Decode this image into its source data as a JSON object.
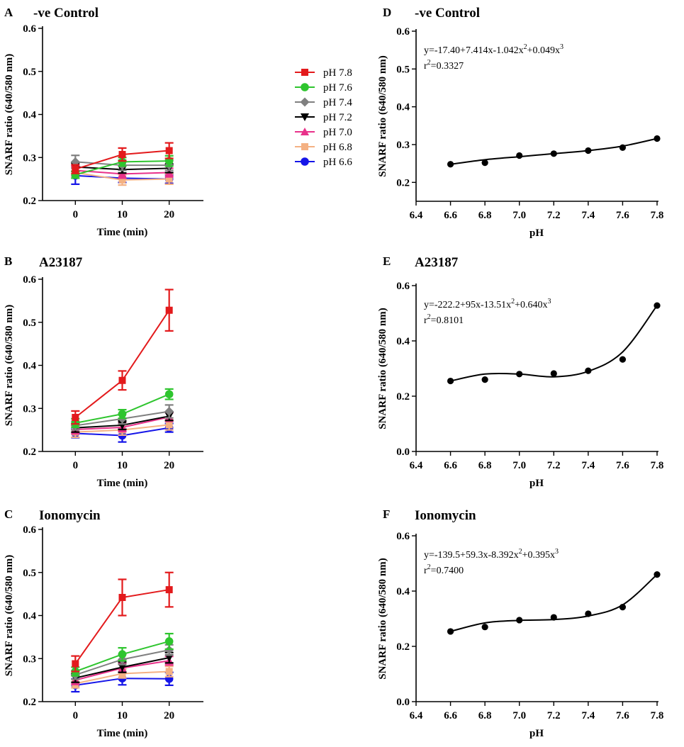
{
  "chart_data": [
    {
      "panel": "A",
      "type": "line",
      "title": "-ve Control",
      "xlabel": "Time (min)",
      "ylabel": "SNARF ratio (640/580 nm)",
      "x": [
        0,
        10,
        20
      ],
      "xticks": [
        "0",
        "10",
        "20"
      ],
      "xlim": [
        -7,
        27
      ],
      "ylim": [
        0.2,
        0.6
      ],
      "yticks": [
        "0.2",
        "0.3",
        "0.4",
        "0.5",
        "0.6"
      ],
      "yticks_show": [
        "0.2",
        "0.3",
        "0.4",
        "0.5",
        "0.6"
      ],
      "legend": "top-right",
      "series": [
        {
          "name": "pH 7.8",
          "color": "#e31a1c",
          "marker": "square",
          "values": [
            0.273,
            0.307,
            0.316
          ],
          "errors": [
            0.01,
            0.015,
            0.018
          ]
        },
        {
          "name": "pH 7.6",
          "color": "#2ec52e",
          "marker": "circle",
          "values": [
            0.26,
            0.29,
            0.292
          ],
          "errors": [
            0.008,
            0.01,
            0.012
          ]
        },
        {
          "name": "pH 7.4",
          "color": "#808080",
          "marker": "diamond",
          "values": [
            0.29,
            0.282,
            0.282
          ],
          "errors": [
            0.015,
            0.012,
            0.012
          ]
        },
        {
          "name": "pH 7.2",
          "color": "#000000",
          "marker": "triangle-down",
          "values": [
            0.278,
            0.272,
            0.275
          ],
          "errors": [
            0.01,
            0.008,
            0.01
          ]
        },
        {
          "name": "pH 7.0",
          "color": "#e8318a",
          "marker": "triangle-up",
          "values": [
            0.27,
            0.262,
            0.265
          ],
          "errors": [
            0.01,
            0.01,
            0.01
          ]
        },
        {
          "name": "pH 6.8",
          "color": "#f4b183",
          "marker": "square",
          "values": [
            0.265,
            0.248,
            0.25
          ],
          "errors": [
            0.012,
            0.012,
            0.012
          ]
        },
        {
          "name": "pH 6.6",
          "color": "#1515e8",
          "marker": "circle",
          "values": [
            0.258,
            0.252,
            0.25
          ],
          "errors": [
            0.02,
            0.01,
            0.01
          ]
        }
      ]
    },
    {
      "panel": "B",
      "type": "line",
      "title": "A23187",
      "xlabel": "Time (min)",
      "ylabel": "SNARF ratio (640/580 nm)",
      "x": [
        0,
        10,
        20
      ],
      "xticks": [
        "0",
        "10",
        "20"
      ],
      "xlim": [
        -7,
        27
      ],
      "ylim": [
        0.2,
        0.6
      ],
      "yticks": [
        "0.2",
        "0.3",
        "0.4",
        "0.5",
        "0.6"
      ],
      "yticks_show": [
        "0.2",
        "0.3",
        "0.4",
        "0.5",
        "0.6"
      ],
      "series": [
        {
          "name": "pH 7.8",
          "color": "#e31a1c",
          "marker": "square",
          "values": [
            0.279,
            0.365,
            0.528
          ],
          "errors": [
            0.015,
            0.022,
            0.048
          ]
        },
        {
          "name": "pH 7.6",
          "color": "#2ec52e",
          "marker": "circle",
          "values": [
            0.266,
            0.287,
            0.333
          ],
          "errors": [
            0.01,
            0.01,
            0.012
          ]
        },
        {
          "name": "pH 7.4",
          "color": "#808080",
          "marker": "diamond",
          "values": [
            0.26,
            0.276,
            0.293
          ],
          "errors": [
            0.01,
            0.012,
            0.015
          ]
        },
        {
          "name": "pH 7.2",
          "color": "#000000",
          "marker": "triangle-down",
          "values": [
            0.255,
            0.261,
            0.282
          ],
          "errors": [
            0.01,
            0.01,
            0.01
          ]
        },
        {
          "name": "pH 7.0",
          "color": "#e8318a",
          "marker": "triangle-up",
          "values": [
            0.251,
            0.256,
            0.28
          ],
          "errors": [
            0.01,
            0.01,
            0.01
          ]
        },
        {
          "name": "pH 6.8",
          "color": "#f4b183",
          "marker": "square",
          "values": [
            0.245,
            0.25,
            0.262
          ],
          "errors": [
            0.012,
            0.012,
            0.012
          ]
        },
        {
          "name": "pH 6.6",
          "color": "#1515e8",
          "marker": "circle",
          "values": [
            0.242,
            0.237,
            0.255
          ],
          "errors": [
            0.01,
            0.015,
            0.01
          ]
        }
      ]
    },
    {
      "panel": "C",
      "type": "line",
      "title": "Ionomycin",
      "xlabel": "Time (min)",
      "ylabel": "SNARF ratio (640/580 nm)",
      "x": [
        0,
        10,
        20
      ],
      "xticks": [
        "0",
        "10",
        "20"
      ],
      "xlim": [
        -7,
        27
      ],
      "ylim": [
        0.2,
        0.6
      ],
      "yticks": [
        "0.2",
        "0.3",
        "0.4",
        "0.5",
        "0.6"
      ],
      "yticks_show": [
        "0.2",
        "0.3",
        "0.4",
        "0.5",
        "0.6"
      ],
      "series": [
        {
          "name": "pH 7.8",
          "color": "#e31a1c",
          "marker": "square",
          "values": [
            0.288,
            0.442,
            0.46
          ],
          "errors": [
            0.018,
            0.042,
            0.04
          ]
        },
        {
          "name": "pH 7.6",
          "color": "#2ec52e",
          "marker": "circle",
          "values": [
            0.27,
            0.31,
            0.34
          ],
          "errors": [
            0.01,
            0.015,
            0.018
          ]
        },
        {
          "name": "pH 7.4",
          "color": "#808080",
          "marker": "diamond",
          "values": [
            0.262,
            0.298,
            0.32
          ],
          "errors": [
            0.01,
            0.012,
            0.012
          ]
        },
        {
          "name": "pH 7.2",
          "color": "#000000",
          "marker": "triangle-down",
          "values": [
            0.255,
            0.28,
            0.302
          ],
          "errors": [
            0.01,
            0.012,
            0.012
          ]
        },
        {
          "name": "pH 7.0",
          "color": "#e8318a",
          "marker": "triangle-up",
          "values": [
            0.25,
            0.278,
            0.295
          ],
          "errors": [
            0.01,
            0.01,
            0.01
          ]
        },
        {
          "name": "pH 6.8",
          "color": "#f4b183",
          "marker": "square",
          "values": [
            0.242,
            0.265,
            0.27
          ],
          "errors": [
            0.01,
            0.01,
            0.012
          ]
        },
        {
          "name": "pH 6.6",
          "color": "#1515e8",
          "marker": "circle",
          "values": [
            0.238,
            0.254,
            0.253
          ],
          "errors": [
            0.015,
            0.015,
            0.015
          ]
        }
      ]
    },
    {
      "panel": "D",
      "type": "scatter",
      "title": "-ve Control",
      "xlabel": "pH",
      "ylabel": "SNARF ratio (640/580 nm)",
      "xlim": [
        6.4,
        7.8
      ],
      "ylim": [
        0.15,
        0.6
      ],
      "xticks": [
        "6.4",
        "6.6",
        "6.8",
        "7.0",
        "7.2",
        "7.4",
        "7.6",
        "7.8"
      ],
      "yticks": [
        "0.15",
        "0.2",
        "0.3",
        "0.4",
        "0.5",
        "0.6"
      ],
      "yticks_show": [
        "0.2",
        "0.3",
        "0.4",
        "0.5",
        "0.6"
      ],
      "points": {
        "x": [
          6.6,
          6.8,
          7.0,
          7.2,
          7.4,
          7.6,
          7.8
        ],
        "y": [
          0.248,
          0.252,
          0.271,
          0.276,
          0.284,
          0.292,
          0.316
        ]
      },
      "curve_y": [
        0.248,
        0.26,
        0.268,
        0.276,
        0.284,
        0.296,
        0.316
      ],
      "equation": {
        "prefix": "y=-17.40+7.414x-1.042x",
        "mid": "+0.049x",
        "sup": "2",
        "sup2": "3",
        "r_prefix": "r",
        "r_sup": "2",
        "r_value": "=0.3327"
      }
    },
    {
      "panel": "E",
      "type": "scatter",
      "title": "A23187",
      "xlabel": "pH",
      "ylabel": "SNARF ratio (640/580 nm)",
      "xlim": [
        6.4,
        7.8
      ],
      "ylim": [
        0.0,
        0.6
      ],
      "xticks": [
        "6.4",
        "6.6",
        "6.8",
        "7.0",
        "7.2",
        "7.4",
        "7.6",
        "7.8"
      ],
      "yticks": [
        "0.0",
        "0.2",
        "0.4",
        "0.6"
      ],
      "yticks_show": [
        "0.0",
        "0.2",
        "0.4",
        "0.6"
      ],
      "points": {
        "x": [
          6.6,
          6.8,
          7.0,
          7.2,
          7.4,
          7.6,
          7.8
        ],
        "y": [
          0.255,
          0.26,
          0.28,
          0.282,
          0.292,
          0.333,
          0.528
        ]
      },
      "curve_y": [
        0.255,
        0.28,
        0.28,
        0.27,
        0.29,
        0.36,
        0.528
      ],
      "equation": {
        "prefix": "y=-222.2+95x-13.51x",
        "mid": "+0.640x",
        "sup": "2",
        "sup2": "3",
        "r_prefix": "r",
        "r_sup": "2",
        "r_value": "=0.8101"
      }
    },
    {
      "panel": "F",
      "type": "scatter",
      "title": "Ionomycin",
      "xlabel": "pH",
      "ylabel": "SNARF ratio (640/580 nm)",
      "xlim": [
        6.4,
        7.8
      ],
      "ylim": [
        0.0,
        0.6
      ],
      "xticks": [
        "6.4",
        "6.6",
        "6.8",
        "7.0",
        "7.2",
        "7.4",
        "7.6",
        "7.8"
      ],
      "yticks": [
        "0.0",
        "0.2",
        "0.4",
        "0.6"
      ],
      "yticks_show": [
        "0.0",
        "0.2",
        "0.4",
        "0.6"
      ],
      "points": {
        "x": [
          6.6,
          6.8,
          7.0,
          7.2,
          7.4,
          7.6,
          7.8
        ],
        "y": [
          0.254,
          0.27,
          0.295,
          0.305,
          0.318,
          0.342,
          0.46
        ]
      },
      "curve_y": [
        0.254,
        0.285,
        0.294,
        0.297,
        0.31,
        0.35,
        0.46
      ],
      "equation": {
        "prefix": "y=-139.5+59.3x-8.392x",
        "mid": "+0.395x",
        "sup": "2",
        "sup2": "3",
        "r_prefix": "r",
        "r_sup": "2",
        "r_value": "=0.7400"
      }
    }
  ]
}
